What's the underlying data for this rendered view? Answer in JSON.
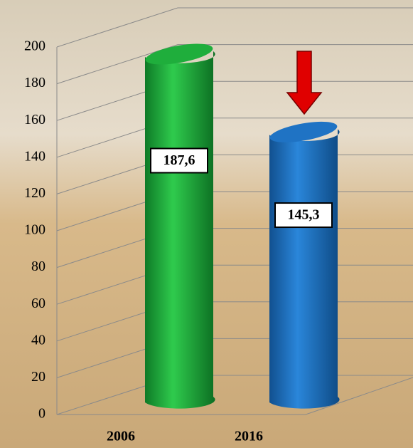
{
  "chart_data": {
    "type": "bar",
    "categories": [
      "2006",
      "2016"
    ],
    "values": [
      187.6,
      145.3
    ],
    "value_labels": [
      "187,6",
      "145,3"
    ],
    "colors": [
      "#1fae3c",
      "#1f73c4"
    ],
    "ylim": [
      0,
      200
    ],
    "yticks": [
      0,
      20,
      40,
      60,
      80,
      100,
      120,
      140,
      160,
      180,
      200
    ],
    "grid": true
  }
}
